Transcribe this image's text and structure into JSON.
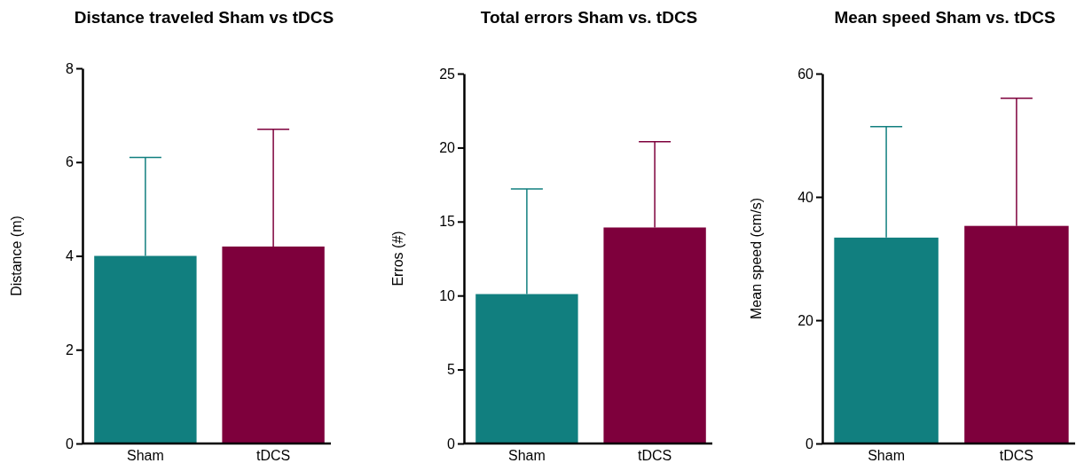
{
  "chart_data": [
    {
      "type": "bar",
      "title": "Distance traveled Sham vs tDCS",
      "ylabel": "Distance (m)",
      "categories": [
        "Sham",
        "tDCS"
      ],
      "values": [
        4.0,
        4.2
      ],
      "colors": [
        "#117f7f",
        "#7e003c"
      ],
      "errors": [
        [
          4.0,
          6.1
        ],
        [
          4.2,
          6.7
        ]
      ],
      "ylim": [
        0,
        8
      ],
      "yticks": [
        0,
        2,
        4,
        6,
        8
      ]
    },
    {
      "type": "bar",
      "title": "Total errors Sham vs. tDCS",
      "ylabel": "Erros (#)",
      "categories": [
        "Sham",
        "tDCS"
      ],
      "values": [
        10.1,
        14.6
      ],
      "colors": [
        "#117f7f",
        "#7e003c"
      ],
      "errors": [
        [
          10.1,
          17.2
        ],
        [
          14.6,
          20.4
        ]
      ],
      "ylim": [
        0,
        25
      ],
      "yticks": [
        0,
        5,
        10,
        15,
        20,
        25
      ]
    },
    {
      "type": "bar",
      "title": "Mean speed Sham vs. tDCS",
      "ylabel": "Mean speed (cm/s)",
      "categories": [
        "Sham",
        "tDCS"
      ],
      "values": [
        33.4,
        35.3
      ],
      "colors": [
        "#117f7f",
        "#7e003c"
      ],
      "errors": [
        [
          33.4,
          51.4
        ],
        [
          35.3,
          56.0
        ]
      ],
      "ylim": [
        0,
        60
      ],
      "yticks": [
        0,
        20,
        40,
        60
      ]
    }
  ]
}
